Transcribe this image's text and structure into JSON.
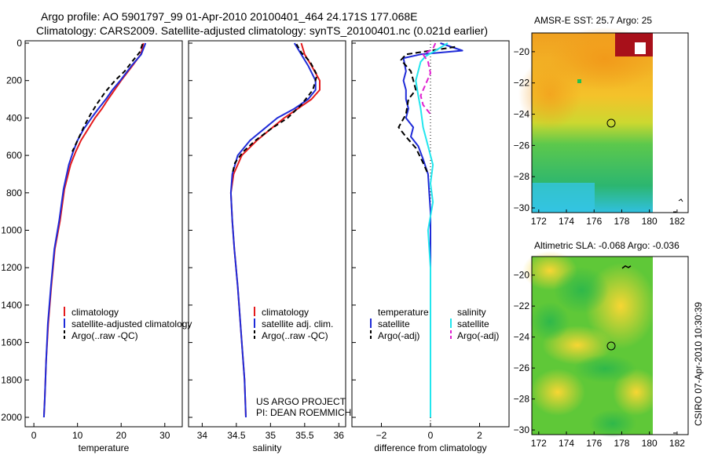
{
  "header": {
    "line1": "Argo profile: AO 5901797_99 01-Apr-2010 20100401_464 24.171S 177.068E",
    "line2": "Climatology: CARS2009. Satellite-adjusted climatology: synTS_20100401.nc (0.021d earlier)"
  },
  "footer": {
    "project": "US ARGO PROJECT",
    "pi": "PI: DEAN ROEMMICH",
    "stamp": "CSIRO 07-Apr-2010 10:30:39"
  },
  "colors": {
    "climatology": "#e41a1c",
    "satellite": "#1f2bd8",
    "argo": "#000000",
    "salinity_satellite": "#22e6ee",
    "salinity_argo": "#e020d0"
  },
  "chart_data": [
    {
      "type": "line",
      "id": "temperature",
      "xlabel": "temperature",
      "ylabel": "",
      "xlim": [
        -2,
        34
      ],
      "ylim": [
        2050,
        0
      ],
      "xticks": [
        0,
        10,
        20,
        30
      ],
      "yticks": [
        0,
        200,
        400,
        600,
        800,
        1000,
        1200,
        1400,
        1600,
        1800,
        2000
      ],
      "legend": [
        "climatology",
        "satellite-adjusted climatology",
        "Argo(..raw -QC)"
      ],
      "series": [
        {
          "name": "climatology",
          "color_key": "climatology",
          "dash": "",
          "x": [
            25.1,
            24.5,
            22.6,
            20.0,
            18.5,
            17.0,
            15.6,
            14.0,
            12.4,
            10.8,
            9.6,
            8.4,
            7.0,
            6.0,
            4.8,
            4.0,
            3.3,
            2.8,
            2.5,
            2.3
          ],
          "y": [
            0,
            60,
            120,
            200,
            250,
            300,
            350,
            400,
            460,
            520,
            580,
            650,
            780,
            950,
            1100,
            1300,
            1500,
            1700,
            1900,
            2000
          ]
        },
        {
          "name": "satellite-adjusted climatology",
          "color_key": "satellite",
          "dash": "",
          "x": [
            25.6,
            24.6,
            22.4,
            19.8,
            18.0,
            16.5,
            14.8,
            13.2,
            11.4,
            10.0,
            9.0,
            8.0,
            6.8,
            5.8,
            4.7,
            3.9,
            3.2,
            2.8,
            2.5,
            2.3
          ],
          "y": [
            0,
            60,
            120,
            200,
            250,
            300,
            350,
            400,
            460,
            520,
            580,
            650,
            780,
            950,
            1100,
            1300,
            1500,
            1700,
            1900,
            2000
          ]
        },
        {
          "name": "Argo(..raw -QC)",
          "color_key": "argo",
          "dash": "6,4",
          "x": [
            24.9,
            24.2,
            22.8,
            20.8,
            18.6,
            16.4,
            14.6,
            13.0,
            11.6,
            10.0,
            8.8
          ],
          "y": [
            5,
            50,
            90,
            150,
            200,
            260,
            320,
            380,
            440,
            520,
            580
          ]
        }
      ]
    },
    {
      "type": "line",
      "id": "salinity",
      "xlabel": "salinity",
      "ylabel": "",
      "xlim": [
        33.8,
        36.1
      ],
      "ylim": [
        2050,
        0
      ],
      "xticks": [
        34,
        34.5,
        35,
        35.5,
        36
      ],
      "yticks": [
        0,
        200,
        400,
        600,
        800,
        1000,
        1200,
        1400,
        1600,
        1800,
        2000
      ],
      "legend": [
        "climatology",
        "satellite adj. clim.",
        "Argo(..raw -QC)"
      ],
      "series": [
        {
          "name": "climatology",
          "color_key": "climatology",
          "dash": "",
          "x": [
            35.45,
            35.5,
            35.6,
            35.72,
            35.72,
            35.6,
            35.4,
            35.2,
            35.0,
            34.8,
            34.58,
            34.46,
            34.42,
            34.44,
            34.47,
            34.52,
            34.58,
            34.62,
            34.64
          ],
          "y": [
            0,
            60,
            120,
            200,
            250,
            300,
            350,
            400,
            460,
            520,
            600,
            700,
            800,
            950,
            1100,
            1300,
            1600,
            1800,
            2000
          ]
        },
        {
          "name": "satellite adj. clim.",
          "color_key": "satellite",
          "dash": "",
          "x": [
            35.35,
            35.45,
            35.55,
            35.66,
            35.66,
            35.55,
            35.35,
            35.1,
            34.9,
            34.7,
            34.52,
            34.44,
            34.42,
            34.44,
            34.47,
            34.52,
            34.58,
            34.62,
            34.64
          ],
          "y": [
            0,
            60,
            120,
            200,
            250,
            300,
            350,
            400,
            460,
            520,
            600,
            700,
            800,
            950,
            1100,
            1300,
            1600,
            1800,
            2000
          ]
        },
        {
          "name": "Argo(..raw -QC)",
          "color_key": "argo",
          "dash": "6,4",
          "x": [
            35.38,
            35.45,
            35.58,
            35.68,
            35.62,
            35.45,
            35.25,
            35.0,
            34.78,
            34.6,
            34.48,
            34.44
          ],
          "y": [
            5,
            50,
            100,
            170,
            250,
            330,
            400,
            460,
            520,
            580,
            640,
            700
          ]
        }
      ]
    },
    {
      "type": "line",
      "id": "difference",
      "xlabel": "difference from climatology",
      "ylabel": "",
      "xlim": [
        -3.2,
        3.2
      ],
      "ylim": [
        2050,
        0
      ],
      "xticks": [
        -2,
        0,
        2
      ],
      "yticks": [
        0,
        200,
        400,
        600,
        800,
        1000,
        1200,
        1400,
        1600,
        1800,
        2000
      ],
      "legend_temperature_title": "temperature",
      "legend_salinity_title": "salinity",
      "legend": [
        "satellite",
        "Argo(-adj)",
        "satellite",
        "Argo(-adj)"
      ],
      "zero_line": 0,
      "series": [
        {
          "name": "satellite",
          "group": "temperature",
          "color_key": "satellite",
          "dash": "",
          "x": [
            0.4,
            1.3,
            -0.4,
            -1.1,
            -1.0,
            -1.1,
            -1.0,
            -1.0,
            -0.9,
            -1.0,
            -0.7,
            -0.8,
            -0.5,
            -0.3,
            -0.1,
            -0.05,
            0.0,
            0.0,
            0.0
          ],
          "y": [
            0,
            40,
            60,
            80,
            150,
            200,
            250,
            300,
            350,
            400,
            450,
            500,
            550,
            620,
            700,
            800,
            900,
            1200,
            2000
          ]
        },
        {
          "name": "Argo(-adj)",
          "group": "temperature",
          "color_key": "argo",
          "dash": "7,4",
          "x": [
            1.0,
            -1.0,
            -1.2,
            -0.8,
            -0.6,
            -0.9,
            -1.0,
            -1.3,
            -1.0,
            -0.6,
            -0.3,
            -0.1
          ],
          "y": [
            20,
            60,
            90,
            150,
            250,
            300,
            380,
            450,
            500,
            560,
            640,
            700
          ]
        },
        {
          "name": "satellite",
          "group": "salinity",
          "color_key": "salinity_satellite",
          "dash": "",
          "x": [
            0.7,
            0.2,
            -0.2,
            -0.4,
            -0.6,
            -0.5,
            -0.4,
            -0.3,
            -0.1,
            0.1,
            0.0,
            0.1,
            -0.1,
            0.0,
            0.0,
            0.0,
            0.0
          ],
          "y": [
            0,
            40,
            70,
            100,
            200,
            280,
            350,
            450,
            550,
            650,
            750,
            850,
            1000,
            1200,
            1500,
            1800,
            2000
          ]
        },
        {
          "name": "Argo(-adj)",
          "group": "salinity",
          "color_key": "salinity_argo",
          "dash": "7,4",
          "x": [
            0.2,
            0.1,
            -0.3,
            -0.1,
            0.0,
            -0.2,
            -0.4,
            -0.3,
            0.0
          ],
          "y": [
            0,
            30,
            60,
            100,
            160,
            220,
            280,
            330,
            380
          ]
        }
      ]
    },
    {
      "type": "heatmap",
      "id": "sst",
      "title": "AMSR-E SST: 25.7 Argo: 25",
      "xlim": [
        171.5,
        182.8
      ],
      "ylim": [
        -30.3,
        -18.8
      ],
      "xticks": [
        172,
        174,
        176,
        178,
        180,
        182
      ],
      "yticks": [
        -20,
        -22,
        -24,
        -26,
        -28,
        -30
      ],
      "argo_position": {
        "lon": 177.07,
        "lat": -24.17
      }
    },
    {
      "type": "heatmap",
      "id": "sla",
      "title": "Altimetric SLA: -0.068 Argo: -0.036",
      "xlim": [
        171.5,
        182.8
      ],
      "ylim": [
        -30.3,
        -18.8
      ],
      "xticks": [
        172,
        174,
        176,
        178,
        180,
        182
      ],
      "yticks": [
        -20,
        -22,
        -24,
        -26,
        -28,
        -30
      ],
      "argo_position": {
        "lon": 177.07,
        "lat": -24.17
      }
    }
  ]
}
